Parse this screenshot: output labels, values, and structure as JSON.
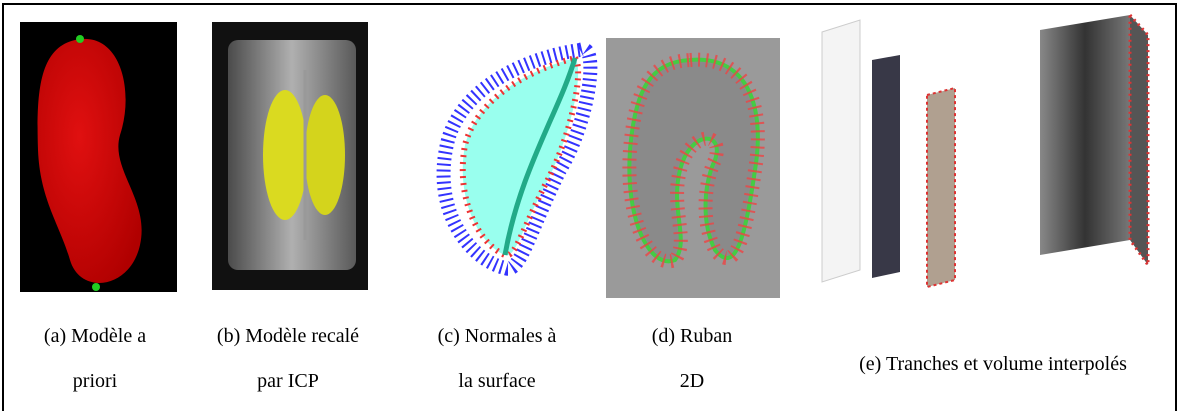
{
  "figure": {
    "panels": [
      {
        "caption": [
          "(a) Modèle a",
          "priori"
        ]
      },
      {
        "caption": [
          "(b) Modèle recalé",
          "par ICP"
        ]
      },
      {
        "caption": [
          "(c) Normales à",
          "la surface"
        ]
      },
      {
        "caption": [
          "(d) Ruban",
          "2D"
        ]
      },
      {
        "caption": [
          "(e) Tranches et volume interpolés"
        ]
      }
    ]
  }
}
